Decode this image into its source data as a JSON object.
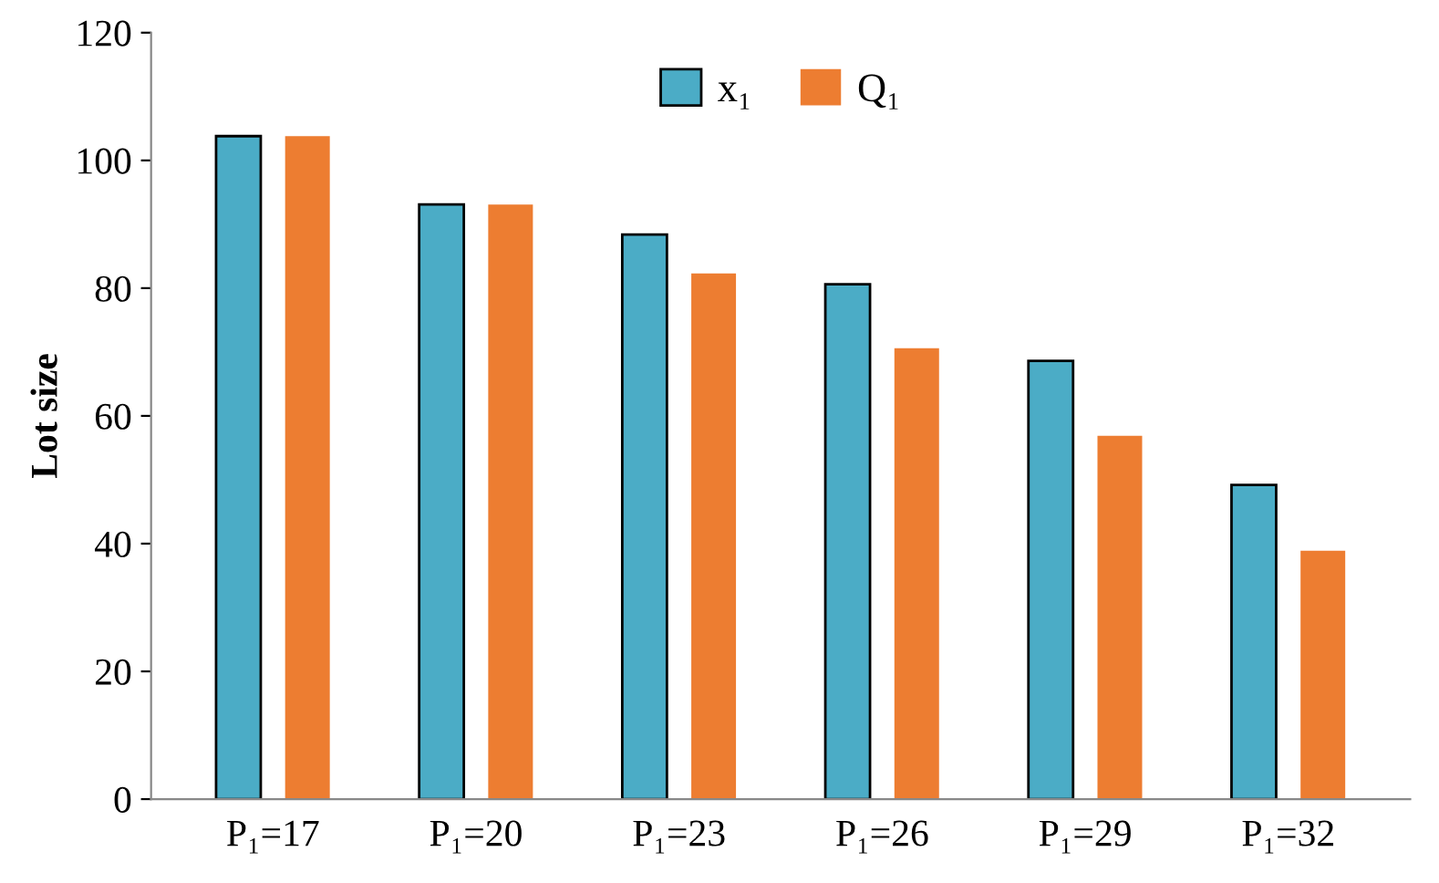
{
  "chart_data": {
    "type": "bar",
    "ylabel": "Lot size",
    "categories": [
      "P₁=17",
      "P₁=20",
      "P₁=23",
      "P₁=26",
      "P₁=29",
      "P₁=32"
    ],
    "series": [
      {
        "name": "x₁",
        "color": "#4bacc6",
        "values": [
          103.8,
          93.1,
          88.4,
          80.6,
          68.6,
          49.2
        ]
      },
      {
        "name": "Q₁",
        "color": "#ed7d31",
        "values": [
          103.8,
          93.1,
          82.3,
          70.6,
          56.9,
          38.9
        ]
      }
    ],
    "ylim": [
      0,
      120
    ],
    "yticks": [
      0,
      20,
      40,
      60,
      80,
      100,
      120
    ],
    "grid": false,
    "legend": "top"
  }
}
